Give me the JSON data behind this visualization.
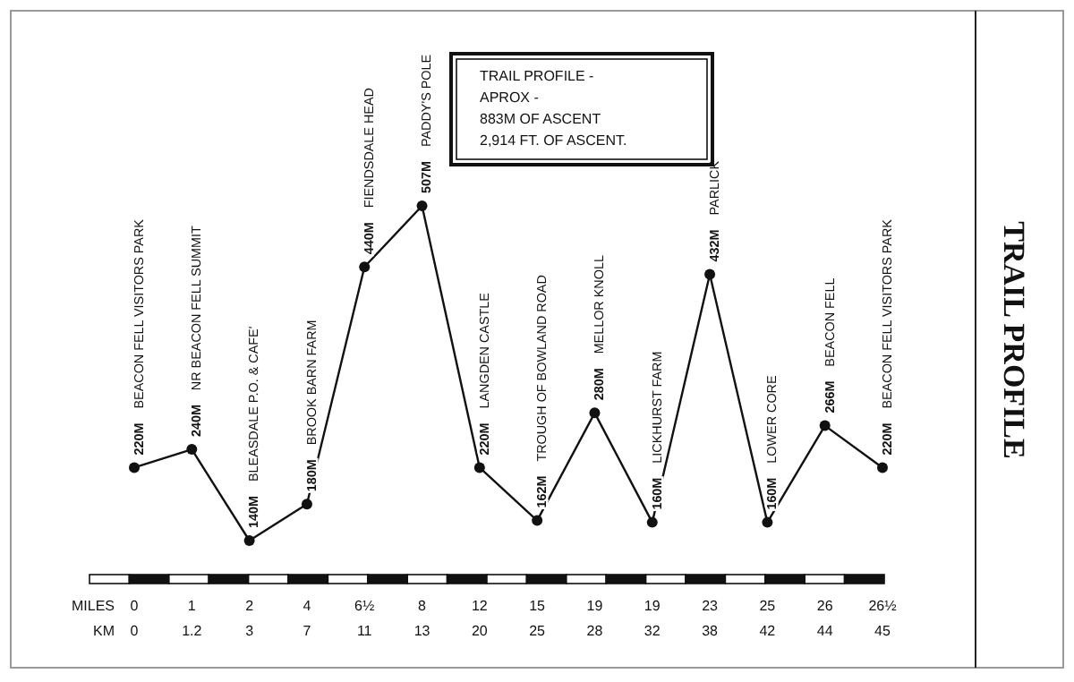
{
  "chart_data": {
    "type": "line",
    "title": "TRAIL PROFILE",
    "xlabel": "MILES\nKM",
    "categories": [
      "0\n0",
      "1\n1.2",
      "2\n3",
      "4\n7",
      "6½\n11",
      "8\n13",
      "12\n20",
      "15\n25",
      "19\n28",
      "19\n32",
      "23\n38",
      "25\n42",
      "26\n44",
      "26½\n45"
    ],
    "series": [
      {
        "color": "#111111",
        "values": [
          220,
          240,
          140,
          180,
          440,
          507,
          220,
          162,
          280,
          160,
          432,
          160,
          266,
          220
        ],
        "value_labels": [
          "220M",
          "240M",
          "140M",
          "180M",
          "440M",
          "507M",
          "220M",
          "162M",
          "280M",
          "160M",
          "432M",
          "160M",
          "266M",
          "220M"
        ]
      }
    ],
    "tick_labels": "x",
    "marker": "circle",
    "line_style": "solid",
    "annotations": [
      "TRAIL PROFILE -\nAPROX -\n883M OF ASCENT\n2,914 FT. OF ASCENT.",
      "BEACON FELL VISITORS PARK",
      "NR BEACON FELL SUMMIT",
      "BLEASDALE P.O. & CAFE'",
      "BROOK BARN FARM",
      "FIENDSDALE HEAD",
      "PADDY'S POLE",
      "LANGDEN CASTLE",
      "TROUGH OF BOWLAND ROAD",
      "MELLOR KNOLL",
      "LICKHURST FARM",
      "PARLICK",
      "LOWER CORE",
      "BEACON FELL",
      "BEACON FELL VISITORS PARK"
    ]
  }
}
